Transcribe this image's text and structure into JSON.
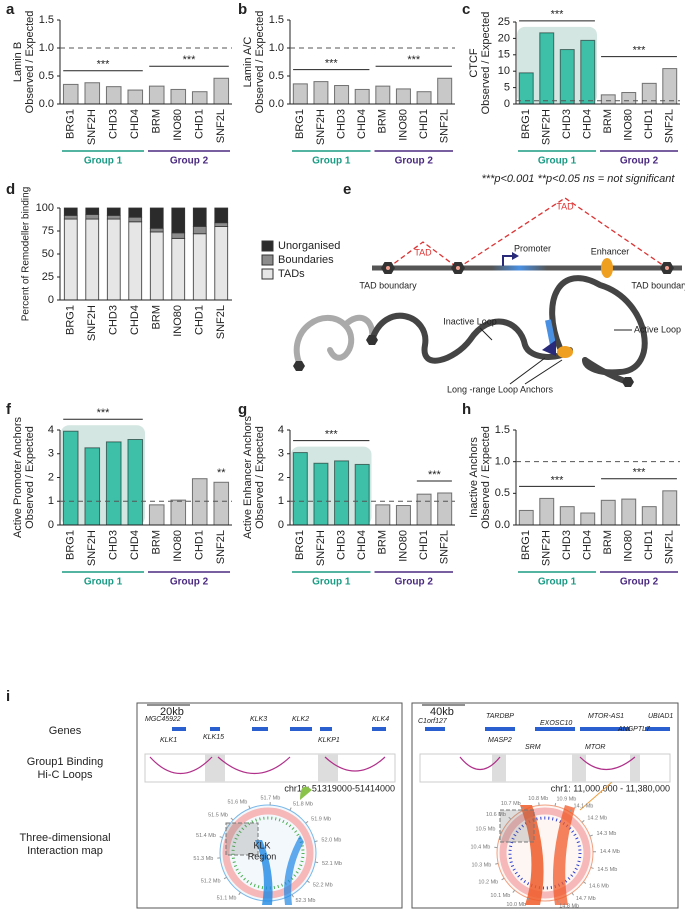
{
  "chart_data": [
    {
      "panel": "a",
      "type": "bar",
      "ylabel": [
        "Lamin B",
        "Observed / Expected"
      ],
      "categories": [
        "BRG1",
        "SNF2H",
        "CHD3",
        "CHD4",
        "BRM",
        "INO80",
        "CHD1",
        "SNF2L"
      ],
      "values": [
        0.35,
        0.38,
        0.31,
        0.25,
        0.32,
        0.26,
        0.22,
        0.46
      ],
      "colors": [
        "#c8c8c8",
        "#c8c8c8",
        "#c8c8c8",
        "#c8c8c8",
        "#c8c8c8",
        "#c8c8c8",
        "#c8c8c8",
        "#c8c8c8"
      ],
      "ylim": [
        0,
        1.5
      ],
      "yticks": [
        {
          "value": 0,
          "label": "0.0"
        },
        {
          "value": 0.5,
          "label": "0.5"
        },
        {
          "value": 1,
          "label": "1.0"
        },
        {
          "value": 1.5,
          "label": "1.5"
        }
      ],
      "reference_line": 1,
      "annotations": [
        {
          "text": "***",
          "start": "BRG1",
          "end": "CHD4"
        },
        {
          "text": "***",
          "start": "BRM",
          "end": "SNF2L"
        }
      ],
      "groups": [
        {
          "name": "Group 1",
          "color": "#1a9b84",
          "start": "BRG1",
          "end": "CHD4"
        },
        {
          "name": "Group 2",
          "color": "#4a2a80",
          "start": "BRM",
          "end": "SNF2L"
        }
      ]
    },
    {
      "panel": "b",
      "type": "bar",
      "ylabel": [
        "Lamin A/C",
        "Observed / Expected"
      ],
      "categories": [
        "BRG1",
        "SNF2H",
        "CHD3",
        "CHD4",
        "BRM",
        "INO80",
        "CHD1",
        "SNF2L"
      ],
      "values": [
        0.36,
        0.4,
        0.33,
        0.26,
        0.32,
        0.27,
        0.22,
        0.46
      ],
      "colors": [
        "#c8c8c8",
        "#c8c8c8",
        "#c8c8c8",
        "#c8c8c8",
        "#c8c8c8",
        "#c8c8c8",
        "#c8c8c8",
        "#c8c8c8"
      ],
      "ylim": [
        0,
        1.5
      ],
      "yticks": [
        {
          "value": 0,
          "label": "0.0"
        },
        {
          "value": 0.5,
          "label": "0.5"
        },
        {
          "value": 1,
          "label": "1.0"
        },
        {
          "value": 1.5,
          "label": "1.5"
        }
      ],
      "reference_line": 1,
      "annotations": [
        {
          "text": "***",
          "start": "BRG1",
          "end": "CHD4"
        },
        {
          "text": "***",
          "start": "BRM",
          "end": "SNF2L"
        }
      ],
      "groups": [
        {
          "name": "Group 1",
          "color": "#1a9b84",
          "start": "BRG1",
          "end": "CHD4"
        },
        {
          "name": "Group 2",
          "color": "#4a2a80",
          "start": "BRM",
          "end": "SNF2L"
        }
      ]
    },
    {
      "panel": "c",
      "type": "bar",
      "ylabel": [
        "CTCF",
        "Observed / Expected"
      ],
      "categories": [
        "BRG1",
        "SNF2H",
        "CHD3",
        "CHD4",
        "BRM",
        "INO80",
        "CHD1",
        "SNF2L"
      ],
      "values": [
        9.5,
        21.7,
        16.6,
        19.4,
        2.8,
        3.5,
        6.3,
        10.8
      ],
      "colors": [
        "#3dbfa8",
        "#3dbfa8",
        "#3dbfa8",
        "#3dbfa8",
        "#c8c8c8",
        "#c8c8c8",
        "#c8c8c8",
        "#c8c8c8"
      ],
      "ylim": [
        0,
        25
      ],
      "yticks": [
        0,
        5,
        10,
        15,
        20,
        25
      ],
      "reference_line": 1,
      "annotations": [
        {
          "text": "***",
          "start": "BRG1",
          "end": "CHD4"
        },
        {
          "text": "***",
          "start": "BRM",
          "end": "SNF2L"
        }
      ],
      "groups": [
        {
          "name": "Group 1",
          "color": "#1a9b84",
          "start": "BRG1",
          "end": "CHD4",
          "shaded": true
        },
        {
          "name": "Group 2",
          "color": "#4a2a80",
          "start": "BRM",
          "end": "SNF2L"
        }
      ],
      "footnote": "***p<0.001   **p<0.05   ns = not significant"
    },
    {
      "panel": "d",
      "type": "stacked_bar",
      "ylabel": [
        "Percent of Remodeller binding"
      ],
      "categories": [
        "BRG1",
        "SNF2H",
        "CHD3",
        "CHD4",
        "BRM",
        "INO80",
        "CHD1",
        "SNF2L"
      ],
      "series": [
        {
          "name": "TADs",
          "color": "#e6e6e6",
          "values": [
            88,
            88,
            88,
            85,
            74,
            67,
            72,
            80
          ]
        },
        {
          "name": "Boundaries",
          "color": "#8c8c8c",
          "values": [
            4,
            5,
            4,
            5,
            4,
            6,
            8,
            4
          ]
        },
        {
          "name": "Unorganised",
          "color": "#2b2b2b",
          "values": [
            8,
            7,
            8,
            10,
            22,
            27,
            20,
            16
          ]
        }
      ],
      "ylim": [
        0,
        100
      ],
      "yticks": [
        0,
        25,
        50,
        75,
        100
      ],
      "legend": "right"
    },
    {
      "panel": "f",
      "type": "bar",
      "ylabel": [
        "Active Promoter Anchors",
        "Observed / Expected"
      ],
      "categories": [
        "BRG1",
        "SNF2H",
        "CHD3",
        "CHD4",
        "BRM",
        "INO80",
        "CHD1",
        "SNF2L"
      ],
      "values": [
        3.95,
        3.25,
        3.5,
        3.6,
        0.85,
        1.05,
        1.95,
        1.8
      ],
      "colors": [
        "#3dbfa8",
        "#3dbfa8",
        "#3dbfa8",
        "#3dbfa8",
        "#c8c8c8",
        "#c8c8c8",
        "#c8c8c8",
        "#c8c8c8"
      ],
      "ylim": [
        0,
        4
      ],
      "yticks": [
        0,
        1,
        2,
        3,
        4
      ],
      "reference_line": 1,
      "annotations": [
        {
          "text": "***",
          "start": "BRG1",
          "end": "CHD4"
        },
        {
          "text": "**",
          "start": "SNF2L",
          "end": "SNF2L"
        }
      ],
      "groups": [
        {
          "name": "Group 1",
          "color": "#1a9b84",
          "start": "BRG1",
          "end": "CHD4",
          "shaded": true
        },
        {
          "name": "Group 2",
          "color": "#4a2a80",
          "start": "BRM",
          "end": "SNF2L"
        }
      ]
    },
    {
      "panel": "g",
      "type": "bar",
      "ylabel": [
        "Active Enhancer Anchors",
        "Observed / Expected"
      ],
      "categories": [
        "BRG1",
        "SNF2H",
        "CHD3",
        "CHD4",
        "BRM",
        "INO80",
        "CHD1",
        "SNF2L"
      ],
      "values": [
        3.05,
        2.6,
        2.7,
        2.55,
        0.85,
        0.82,
        1.3,
        1.35
      ],
      "colors": [
        "#3dbfa8",
        "#3dbfa8",
        "#3dbfa8",
        "#3dbfa8",
        "#c8c8c8",
        "#c8c8c8",
        "#c8c8c8",
        "#c8c8c8"
      ],
      "ylim": [
        0,
        4
      ],
      "yticks": [
        0,
        1,
        2,
        3,
        4
      ],
      "reference_line": 1,
      "annotations": [
        {
          "text": "***",
          "start": "BRG1",
          "end": "CHD4"
        },
        {
          "text": "***",
          "start": "CHD1",
          "end": "SNF2L"
        }
      ],
      "groups": [
        {
          "name": "Group 1",
          "color": "#1a9b84",
          "start": "BRG1",
          "end": "CHD4",
          "shaded": true
        },
        {
          "name": "Group 2",
          "color": "#4a2a80",
          "start": "BRM",
          "end": "SNF2L"
        }
      ]
    },
    {
      "panel": "h",
      "type": "bar",
      "ylabel": [
        "Inactive Anchors",
        "Observed / Expected"
      ],
      "categories": [
        "BRG1",
        "SNF2H",
        "CHD3",
        "CHD4",
        "BRM",
        "INO80",
        "CHD1",
        "SNF2L"
      ],
      "values": [
        0.23,
        0.42,
        0.29,
        0.19,
        0.39,
        0.41,
        0.29,
        0.54
      ],
      "colors": [
        "#c8c8c8",
        "#c8c8c8",
        "#c8c8c8",
        "#c8c8c8",
        "#c8c8c8",
        "#c8c8c8",
        "#c8c8c8",
        "#c8c8c8"
      ],
      "ylim": [
        0,
        1.5
      ],
      "yticks": [
        {
          "value": 0,
          "label": "0.0"
        },
        {
          "value": 0.5,
          "label": "0.5"
        },
        {
          "value": 1,
          "label": "1.0"
        },
        {
          "value": 1.5,
          "label": "1.5"
        }
      ],
      "reference_line": 1,
      "annotations": [
        {
          "text": "***",
          "start": "BRG1",
          "end": "CHD4"
        },
        {
          "text": "***",
          "start": "BRM",
          "end": "SNF2L"
        }
      ],
      "groups": [
        {
          "name": "Group 1",
          "color": "#1a9b84",
          "start": "BRG1",
          "end": "CHD4"
        },
        {
          "name": "Group 2",
          "color": "#4a2a80",
          "start": "BRM",
          "end": "SNF2L"
        }
      ]
    }
  ],
  "diagram": {
    "panel": "e",
    "tad_labels": [
      "TAD",
      "TAD"
    ],
    "promoter": "Promoter",
    "enhancer": "Enhancer",
    "boundary_labels": [
      "TAD boundary",
      "TAD boundary"
    ],
    "inactive_loop": "Inactive Loop",
    "active_loop": "Active Loop",
    "anchors": "Long -range Loop Anchors"
  },
  "genome_panel": {
    "panel": "i",
    "row_labels": [
      "Genes",
      "Group1 Binding",
      "Hi-C Loops",
      "Three-dimensional",
      "Interaction map"
    ],
    "regions": [
      {
        "scale": "20kb",
        "genes": [
          "MGC45922",
          "KLK1",
          "KLK15",
          "KLK3",
          "KLK2",
          "KLKP1",
          "KLK4"
        ],
        "coords": "chr19: 51319000-51414000",
        "region_label": [
          "KLK",
          "Region"
        ],
        "mb_labels": [
          "51.1 Mb",
          "51.2 Mb",
          "51.3 Mb",
          "51.4 Mb",
          "51.5 Mb",
          "51.6 Mb",
          "51.7 Mb",
          "51.8 Mb",
          "51.9 Mb",
          "52.0 Mb",
          "52.1 Mb",
          "52.2 Mb",
          "52.3 Mb"
        ]
      },
      {
        "scale": "40kb",
        "genes": [
          "C1orf127",
          "TARDBP",
          "MASP2",
          "EXOSC10",
          "SRM",
          "MTOR-AS1",
          "MTOR",
          "ANGPTL7",
          "UBIAD1"
        ],
        "coords": "chr1: 11,000,000 - 11,380,000",
        "mb_labels": [
          "10.0 Mb",
          "10.1 Mb",
          "10.2 Mb",
          "10.3 Mb",
          "10.4 Mb",
          "10.5 Mb",
          "10.6 Mb",
          "10.7 Mb",
          "10.8 Mb",
          "10.9 Mb",
          "14.1 Mb",
          "14.2 Mb",
          "14.3 Mb",
          "14.4 Mb",
          "14.5 Mb",
          "14.6 Mb",
          "14.7 Mb",
          "14.8 Mb"
        ]
      }
    ]
  }
}
